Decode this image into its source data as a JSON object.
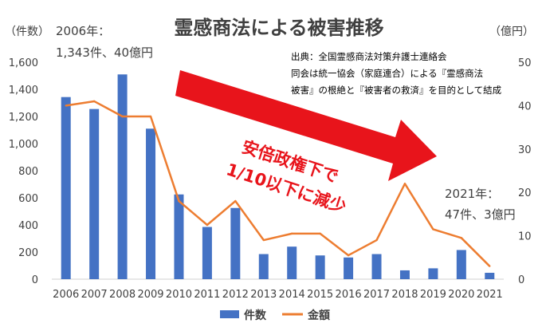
{
  "chart_data": {
    "type": "bar",
    "title": "霊感商法による被害推移",
    "y_left_label": "（件数）",
    "y_right_label": "（億円）",
    "categories": [
      "2006",
      "2007",
      "2008",
      "2009",
      "2010",
      "2011",
      "2012",
      "2013",
      "2014",
      "2015",
      "2016",
      "2017",
      "2018",
      "2019",
      "2020",
      "2021"
    ],
    "series": [
      {
        "name": "件数",
        "type": "bar",
        "axis": "left",
        "color": "#4472C4",
        "values": [
          1343,
          1255,
          1510,
          1110,
          625,
          385,
          525,
          185,
          240,
          175,
          160,
          185,
          65,
          80,
          215,
          47
        ]
      },
      {
        "name": "金額",
        "type": "line",
        "axis": "right",
        "color": "#ED7D31",
        "values": [
          40,
          41,
          37.5,
          37.5,
          18,
          12.5,
          18,
          9,
          10.5,
          10.5,
          5.5,
          9,
          22,
          11.5,
          9.5,
          3
        ]
      }
    ],
    "ylim_left": [
      0,
      1600
    ],
    "yticks_left": [
      "0",
      "200",
      "400",
      "600",
      "800",
      "1,000",
      "1,200",
      "1,400",
      "1,600"
    ],
    "ylim_right": [
      0,
      50
    ],
    "yticks_right": [
      "0",
      "10",
      "20",
      "30",
      "40",
      "50"
    ],
    "legend_position": "bottom",
    "annotations": {
      "start_line1": "2006年：",
      "start_line2": "1,343件、40億円",
      "end_line1": "2021年：",
      "end_line2": "47件、3億円",
      "source_line1": "出典：全国霊感商法対策弁護士連絡会",
      "source_line2": "同会は統一協会（家庭連合）による『霊感商法",
      "source_line3": "被害』の根絶と『被害者の救済』を目的として結成",
      "arrow_line1": "安倍政権下で",
      "arrow_line2": "1/10以下に減少"
    },
    "colors": {
      "bars": "#4472C4",
      "line": "#ED7D31",
      "arrow": "#E8141B",
      "arrow_text": "#E8141B",
      "title": "#404040",
      "axis_text": "#404040"
    }
  }
}
